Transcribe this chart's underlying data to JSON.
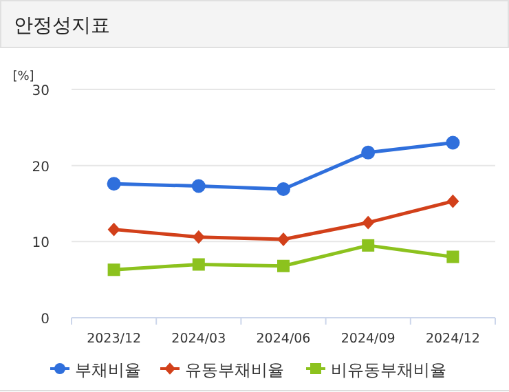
{
  "chart_data": {
    "type": "line",
    "title": "안정성지표",
    "ylabel": "[%]",
    "categories": [
      "2023/12",
      "2024/03",
      "2024/06",
      "2024/09",
      "2024/12"
    ],
    "series": [
      {
        "name": "부채비율",
        "color": "#2f6fdc",
        "marker": "circle",
        "values": [
          17.6,
          17.3,
          16.9,
          21.7,
          23.0
        ]
      },
      {
        "name": "유동부채비율",
        "color": "#d2401a",
        "marker": "diamond",
        "values": [
          11.6,
          10.6,
          10.3,
          12.5,
          15.3
        ]
      },
      {
        "name": "비유동부채비율",
        "color": "#8cc21e",
        "marker": "square",
        "values": [
          6.3,
          7.0,
          6.8,
          9.5,
          8.0
        ]
      }
    ],
    "ylim": [
      0,
      30
    ],
    "yticks": [
      0,
      10,
      20,
      30
    ],
    "grid": "y",
    "legend": "bottom"
  }
}
